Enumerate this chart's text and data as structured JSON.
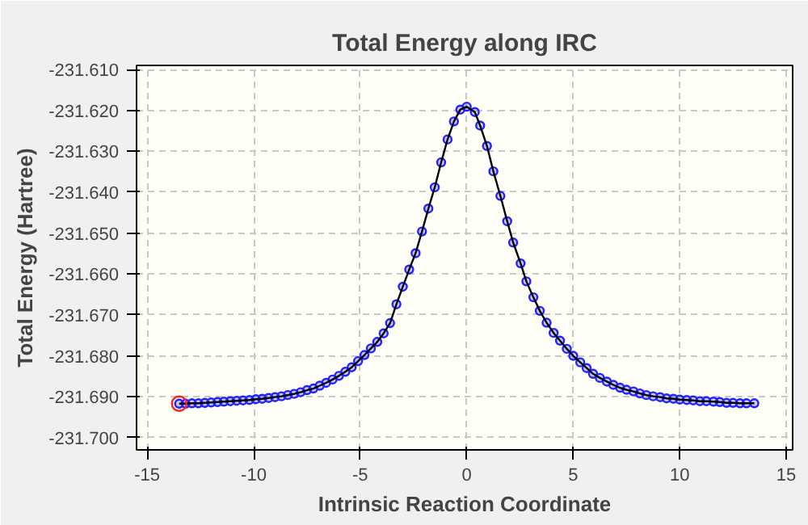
{
  "chart_data": {
    "type": "line",
    "title": "Total Energy along IRC",
    "xlabel": "Intrinsic Reaction Coordinate",
    "ylabel": "Total Energy (Hartree)",
    "x": [
      -13.5,
      -13.2,
      -12.9,
      -12.6,
      -12.3,
      -12.0,
      -11.7,
      -11.4,
      -11.1,
      -10.8,
      -10.5,
      -10.2,
      -9.9,
      -9.6,
      -9.3,
      -9.0,
      -8.7,
      -8.4,
      -8.1,
      -7.8,
      -7.5,
      -7.2,
      -6.9,
      -6.6,
      -6.3,
      -6.0,
      -5.7,
      -5.4,
      -5.1,
      -4.8,
      -4.5,
      -4.2,
      -3.9,
      -3.6,
      -3.3,
      -3.0,
      -2.7,
      -2.4,
      -2.1,
      -1.8,
      -1.5,
      -1.2,
      -0.9,
      -0.6,
      -0.3,
      0,
      0.38,
      0.63,
      0.95,
      1.25,
      1.58,
      1.9,
      2.18,
      2.53,
      2.8,
      3.13,
      3.43,
      3.75,
      4.08,
      4.38,
      4.7,
      5.0,
      5.33,
      5.63,
      5.93,
      6.25,
      6.58,
      6.88,
      7.2,
      7.5,
      7.83,
      8.13,
      8.43,
      8.75,
      9.08,
      9.38,
      9.7,
      10.0,
      10.33,
      10.63,
      10.95,
      11.25,
      11.58,
      11.88,
      12.2,
      12.5,
      12.83,
      13.13,
      13.5
    ],
    "series": [
      {
        "color": "#000000",
        "marker": "none",
        "values": [
          -231.6917,
          -231.6917,
          -231.6916,
          -231.6916,
          -231.6915,
          -231.6914,
          -231.6913,
          -231.6912,
          -231.6911,
          -231.691,
          -231.6909,
          -231.6908,
          -231.6906,
          -231.6905,
          -231.6903,
          -231.6901,
          -231.6899,
          -231.6896,
          -231.6893,
          -231.6889,
          -231.6884,
          -231.688,
          -231.6873,
          -231.6866,
          -231.6858,
          -231.6849,
          -231.6839,
          -231.6828,
          -231.6813,
          -231.6798,
          -231.6782,
          -231.6766,
          -231.6745,
          -231.672,
          -231.6674,
          -231.6631,
          -231.6589,
          -231.6549,
          -231.6496,
          -231.644,
          -231.6388,
          -231.6327,
          -231.6271,
          -231.6227,
          -231.6198,
          -231.6191,
          -231.6204,
          -231.6237,
          -231.6287,
          -231.6349,
          -231.6409,
          -231.6471,
          -231.6523,
          -231.6574,
          -231.6618,
          -231.6657,
          -231.669,
          -231.6719,
          -231.6744,
          -231.6763,
          -231.6783,
          -231.68,
          -231.6816,
          -231.683,
          -231.6844,
          -231.6854,
          -231.6863,
          -231.6871,
          -231.6878,
          -231.6883,
          -231.6887,
          -231.6892,
          -231.6896,
          -231.6899,
          -231.6901,
          -231.6904,
          -231.6905,
          -231.6907,
          -231.6908,
          -231.6909,
          -231.6911,
          -231.6911,
          -231.6912,
          -231.6913,
          -231.6915,
          -231.6915,
          -231.6916,
          -231.6916,
          -231.6916
        ]
      },
      {
        "type": "scatter",
        "color": "#2222ff",
        "marker": "circle",
        "values": [
          -231.6917,
          -231.6917,
          -231.6916,
          -231.6916,
          -231.6915,
          -231.6914,
          -231.6913,
          -231.6912,
          -231.6911,
          -231.691,
          -231.6909,
          -231.6908,
          -231.6906,
          -231.6905,
          -231.6903,
          -231.6901,
          -231.6899,
          -231.6896,
          -231.6893,
          -231.6889,
          -231.6884,
          -231.688,
          -231.6873,
          -231.6866,
          -231.6858,
          -231.6849,
          -231.6839,
          -231.6828,
          -231.6813,
          -231.6798,
          -231.6782,
          -231.6766,
          -231.6745,
          -231.672,
          -231.6674,
          -231.6631,
          -231.6589,
          -231.6549,
          -231.6496,
          -231.644,
          -231.6388,
          -231.6327,
          -231.6271,
          -231.6227,
          -231.6198,
          -231.6191,
          -231.6204,
          -231.6237,
          -231.6287,
          -231.6349,
          -231.6409,
          -231.6471,
          -231.6523,
          -231.6574,
          -231.6618,
          -231.6657,
          -231.669,
          -231.6719,
          -231.6744,
          -231.6763,
          -231.6783,
          -231.68,
          -231.6816,
          -231.683,
          -231.6844,
          -231.6854,
          -231.6863,
          -231.6871,
          -231.6878,
          -231.6883,
          -231.6887,
          -231.6892,
          -231.6896,
          -231.6899,
          -231.6901,
          -231.6904,
          -231.6905,
          -231.6907,
          -231.6908,
          -231.6909,
          -231.6911,
          -231.6911,
          -231.6912,
          -231.6913,
          -231.6915,
          -231.6915,
          -231.6916,
          -231.6916,
          -231.6916
        ]
      },
      {
        "type": "scatter",
        "color": "#ff2020",
        "marker": "circle",
        "x": [
          -13.5
        ],
        "values": [
          -231.6917
        ]
      }
    ],
    "xlim": [
      -15.5,
      15.3
    ],
    "ylim": [
      -231.703,
      -231.609
    ],
    "xticks": [
      -15,
      -10,
      -5,
      0,
      5,
      10,
      15
    ],
    "yticks": [
      {
        "value": -231.61,
        "label": "-231.610"
      },
      {
        "value": -231.62,
        "label": "-231.620"
      },
      {
        "value": -231.63,
        "label": "-231.630"
      },
      {
        "value": -231.64,
        "label": "-231.640"
      },
      {
        "value": -231.65,
        "label": "-231.650"
      },
      {
        "value": -231.66,
        "label": "-231.660"
      },
      {
        "value": -231.67,
        "label": "-231.670"
      },
      {
        "value": -231.68,
        "label": "-231.680"
      },
      {
        "value": -231.69,
        "label": "-231.690"
      },
      {
        "value": -231.7,
        "label": "-231.700"
      }
    ],
    "grid": true
  }
}
